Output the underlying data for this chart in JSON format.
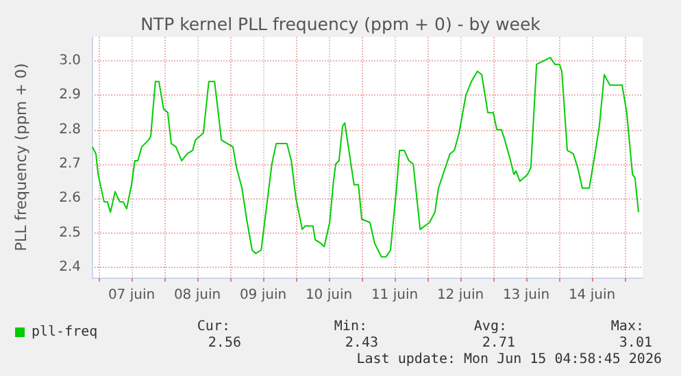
{
  "chart_data": {
    "type": "line",
    "title": "NTP kernel PLL frequency (ppm + 0) - by week",
    "ylabel": "PLL frequency (ppm + 0)",
    "xlim": [
      "2026-06-06T21:30",
      "2026-06-15T06:30"
    ],
    "xticks": [
      {
        "value": "2026-06-07T00:00",
        "label": null
      },
      {
        "value": "2026-06-07T12:00",
        "label": "07 juin"
      },
      {
        "value": "2026-06-08T00:00",
        "label": null
      },
      {
        "value": "2026-06-08T12:00",
        "label": "08 juin"
      },
      {
        "value": "2026-06-09T00:00",
        "label": null
      },
      {
        "value": "2026-06-09T12:00",
        "label": "09 juin"
      },
      {
        "value": "2026-06-10T00:00",
        "label": null
      },
      {
        "value": "2026-06-10T12:00",
        "label": "10 juin"
      },
      {
        "value": "2026-06-11T00:00",
        "label": null
      },
      {
        "value": "2026-06-11T12:00",
        "label": "11 juin"
      },
      {
        "value": "2026-06-12T00:00",
        "label": null
      },
      {
        "value": "2026-06-12T12:00",
        "label": "12 juin"
      },
      {
        "value": "2026-06-13T00:00",
        "label": null
      },
      {
        "value": "2026-06-13T12:00",
        "label": "13 juin"
      },
      {
        "value": "2026-06-14T00:00",
        "label": null
      },
      {
        "value": "2026-06-14T12:00",
        "label": "14 juin"
      },
      {
        "value": "2026-06-15T00:00",
        "label": null
      }
    ],
    "ylim": [
      2.37,
      3.07
    ],
    "yticks": [
      2.4,
      2.5,
      2.6,
      2.7,
      2.8,
      2.9,
      {
        "value": 3,
        "label": "3.0"
      }
    ],
    "grid": true,
    "legend": "bottom left",
    "annotations": [
      "Cur:",
      "2.56",
      "Min:",
      "2.43",
      "Avg:",
      "2.71",
      "Max:",
      "3.01",
      "Last update: Mon Jun 15 04:58:45 2026"
    ],
    "x": [
      "2026-06-06T21:42",
      "2026-06-06T23:00",
      "2026-06-06T23:48",
      "2026-06-07T02:00",
      "2026-06-07T03:12",
      "2026-06-07T04:18",
      "2026-06-07T06:00",
      "2026-06-07T07:42",
      "2026-06-07T09:00",
      "2026-06-07T10:12",
      "2026-06-07T12:00",
      "2026-06-07T13:12",
      "2026-06-07T14:18",
      "2026-06-07T15:42",
      "2026-06-07T18:12",
      "2026-06-07T19:00",
      "2026-06-07T20:42",
      "2026-06-07T22:00",
      "2026-06-07T23:42",
      "2026-06-08T01:12",
      "2026-06-08T02:30",
      "2026-06-08T04:12",
      "2026-06-08T06:18",
      "2026-06-08T08:18",
      "2026-06-08T10:18",
      "2026-06-08T11:18",
      "2026-06-08T14:12",
      "2026-06-08T16:12",
      "2026-06-08T18:18",
      "2026-06-08T20:48",
      "2026-06-09T01:00",
      "2026-06-09T02:18",
      "2026-06-09T04:18",
      "2026-06-09T06:00",
      "2026-06-09T08:00",
      "2026-06-09T09:18",
      "2026-06-09T11:18",
      "2026-06-09T12:42",
      "2026-06-09T15:12",
      "2026-06-09T16:48",
      "2026-06-09T19:18",
      "2026-06-09T20:42",
      "2026-06-09T22:18",
      "2026-06-10T00:00",
      "2026-06-10T02:18",
      "2026-06-10T03:18",
      "2026-06-10T06:12",
      "2026-06-10T07:00",
      "2026-06-10T09:00",
      "2026-06-10T10:18",
      "2026-06-10T12:18",
      "2026-06-10T13:42",
      "2026-06-10T14:30",
      "2026-06-10T15:42",
      "2026-06-10T17:00",
      "2026-06-10T17:48",
      "2026-06-10T21:12",
      "2026-06-10T22:48",
      "2026-06-11T00:00",
      "2026-06-11T03:00",
      "2026-06-11T04:42",
      "2026-06-11T07:12",
      "2026-06-11T08:48",
      "2026-06-11T10:30",
      "2026-06-11T12:42",
      "2026-06-11T13:48",
      "2026-06-11T15:30",
      "2026-06-11T17:12",
      "2026-06-11T18:48",
      "2026-06-11T21:18",
      "2026-06-12T00:42",
      "2026-06-12T02:42",
      "2026-06-12T04:00",
      "2026-06-12T06:30",
      "2026-06-12T08:12",
      "2026-06-12T09:48",
      "2026-06-12T11:30",
      "2026-06-12T14:00",
      "2026-06-12T16:00",
      "2026-06-12T18:12",
      "2026-06-12T19:48",
      "2026-06-12T22:00",
      "2026-06-13T00:00",
      "2026-06-13T01:18",
      "2026-06-13T03:00",
      "2026-06-13T04:12",
      "2026-06-13T06:18",
      "2026-06-13T07:30",
      "2026-06-13T08:18",
      "2026-06-13T09:42",
      "2026-06-13T12:30",
      "2026-06-13T13:42",
      "2026-06-13T15:48",
      "2026-06-13T18:18",
      "2026-06-13T20:48",
      "2026-06-13T22:30",
      "2026-06-14T00:12",
      "2026-06-14T01:00",
      "2026-06-14T03:00",
      "2026-06-14T05:12",
      "2026-06-14T06:48",
      "2026-06-14T08:30",
      "2026-06-14T11:00",
      "2026-06-14T12:42",
      "2026-06-14T14:42",
      "2026-06-14T16:30",
      "2026-06-14T18:30",
      "2026-06-14T20:42",
      "2026-06-14T23:00",
      "2026-06-15T00:42",
      "2026-06-15T02:48",
      "2026-06-15T03:42",
      "2026-06-15T05:00"
    ],
    "series": [
      {
        "name": "pll-freq",
        "color": "#00cc00",
        "values": [
          2.75,
          2.73,
          2.67,
          2.59,
          2.59,
          2.56,
          2.62,
          2.59,
          2.59,
          2.57,
          2.64,
          2.71,
          2.71,
          2.75,
          2.77,
          2.78,
          2.94,
          2.94,
          2.86,
          2.85,
          2.76,
          2.75,
          2.71,
          2.73,
          2.74,
          2.77,
          2.79,
          2.94,
          2.94,
          2.77,
          2.75,
          2.69,
          2.63,
          2.54,
          2.45,
          2.44,
          2.45,
          2.54,
          2.7,
          2.76,
          2.76,
          2.76,
          2.71,
          2.6,
          2.51,
          2.52,
          2.52,
          2.48,
          2.47,
          2.46,
          2.53,
          2.65,
          2.7,
          2.71,
          2.81,
          2.82,
          2.64,
          2.64,
          2.54,
          2.53,
          2.47,
          2.43,
          2.43,
          2.45,
          2.63,
          2.74,
          2.74,
          2.71,
          2.7,
          2.51,
          2.53,
          2.56,
          2.63,
          2.69,
          2.73,
          2.74,
          2.79,
          2.9,
          2.94,
          2.97,
          2.96,
          2.85,
          2.85,
          2.8,
          2.8,
          2.77,
          2.71,
          2.67,
          2.68,
          2.65,
          2.67,
          2.69,
          2.99,
          3.0,
          3.01,
          2.99,
          2.99,
          2.97,
          2.74,
          2.73,
          2.69,
          2.63,
          2.63,
          2.71,
          2.81,
          2.96,
          2.93,
          2.93,
          2.93,
          2.85,
          2.67,
          2.66,
          2.56
        ]
      }
    ]
  }
}
